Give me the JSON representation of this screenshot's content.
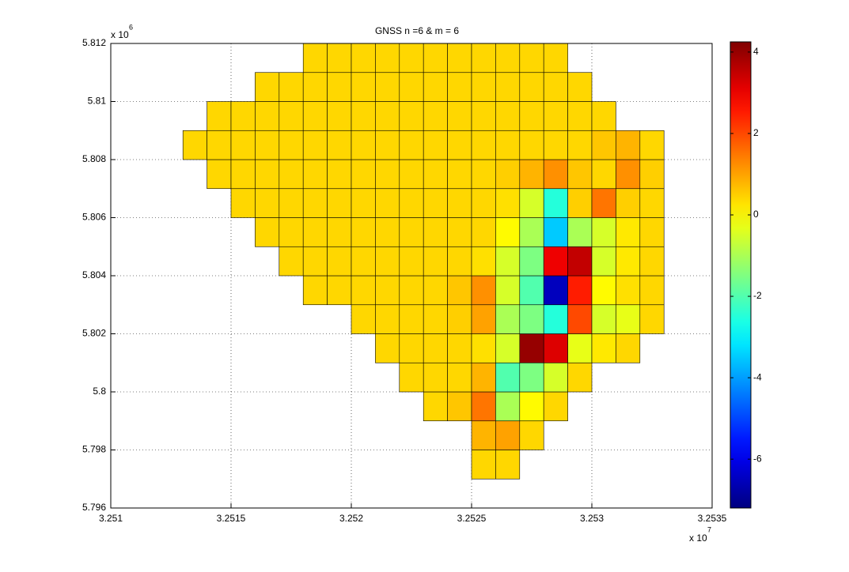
{
  "chart_data": {
    "type": "heatmap",
    "title": "GNSS n =6 & m = 6",
    "colormap": "jet",
    "grid": true,
    "cell_edge_color": "#000000",
    "x": [
      32513500,
      32514500,
      32515500,
      32516500,
      32517500,
      32518500,
      32519500,
      32520500,
      32521500,
      32522500,
      32523500,
      32524500,
      32525500,
      32526500,
      32527500,
      32528500,
      32529500,
      32530500,
      32531500,
      32532500,
      32533500
    ],
    "y": [
      5797500,
      5798500,
      5799500,
      5800500,
      5801500,
      5802500,
      5803500,
      5804500,
      5805500,
      5806500,
      5807500,
      5808500,
      5809500,
      5810500,
      5811500
    ],
    "z": [
      [
        null,
        null,
        null,
        null,
        null,
        null,
        null,
        null,
        null,
        null,
        null,
        null,
        0.4,
        0.4,
        null,
        null,
        null,
        null,
        null,
        null,
        null
      ],
      [
        null,
        null,
        null,
        null,
        null,
        null,
        null,
        null,
        null,
        null,
        null,
        null,
        0.8,
        1.0,
        0.4,
        null,
        null,
        null,
        null,
        null,
        null
      ],
      [
        null,
        null,
        null,
        null,
        null,
        null,
        null,
        null,
        null,
        null,
        0.4,
        0.6,
        1.5,
        -1,
        0,
        0.4,
        null,
        null,
        null,
        null,
        null
      ],
      [
        null,
        null,
        null,
        null,
        null,
        null,
        null,
        null,
        null,
        0.4,
        0.4,
        0.4,
        0.8,
        -2,
        -1.5,
        -0.5,
        0.4,
        null,
        null,
        null,
        null
      ],
      [
        null,
        null,
        null,
        null,
        null,
        null,
        null,
        null,
        0.4,
        0.4,
        0.4,
        0.4,
        0.3,
        -0.5,
        4,
        3.2,
        -0.3,
        0.2,
        0.4,
        null,
        null
      ],
      [
        null,
        null,
        null,
        null,
        null,
        null,
        null,
        0.4,
        0.4,
        0.4,
        0.4,
        0.5,
        1.0,
        -1,
        -1.5,
        -2.5,
        2,
        -0.5,
        -0.3,
        0.4,
        null
      ],
      [
        null,
        null,
        null,
        null,
        null,
        0.4,
        0.4,
        0.4,
        0.4,
        0.4,
        0.4,
        0.6,
        1.2,
        -0.5,
        -2,
        -6.5,
        2.5,
        0,
        0.3,
        0.4,
        null
      ],
      [
        null,
        null,
        null,
        null,
        0.4,
        0.4,
        0.4,
        0.4,
        0.4,
        0.4,
        0.4,
        0.4,
        0.3,
        -0.5,
        -1.5,
        3,
        3.5,
        -0.5,
        0.2,
        0.4,
        null
      ],
      [
        null,
        null,
        null,
        0.4,
        0.4,
        0.4,
        0.4,
        0.4,
        0.4,
        0.4,
        0.4,
        0.4,
        0.4,
        0,
        -1,
        -3.5,
        -1,
        -0.5,
        0.2,
        0.4,
        null
      ],
      [
        null,
        null,
        0.4,
        0.4,
        0.4,
        0.4,
        0.4,
        0.4,
        0.4,
        0.4,
        0.4,
        0.4,
        0.4,
        0.3,
        -0.5,
        -2.5,
        0.5,
        1.5,
        0.5,
        0.4,
        null
      ],
      [
        null,
        0.4,
        0.4,
        0.4,
        0.4,
        0.4,
        0.4,
        0.4,
        0.4,
        0.4,
        0.4,
        0.4,
        0.4,
        0.5,
        0.8,
        1.2,
        0.6,
        0.4,
        1.2,
        0.5,
        null
      ],
      [
        0.4,
        0.4,
        0.4,
        0.4,
        0.4,
        0.4,
        0.4,
        0.4,
        0.4,
        0.4,
        0.4,
        0.4,
        0.4,
        0.4,
        0.4,
        0.4,
        0.4,
        0.6,
        0.8,
        0.4,
        null
      ],
      [
        null,
        0.4,
        0.4,
        0.4,
        0.4,
        0.4,
        0.4,
        0.4,
        0.4,
        0.4,
        0.4,
        0.4,
        0.4,
        0.4,
        0.4,
        0.4,
        0.4,
        0.4,
        null,
        null,
        null
      ],
      [
        null,
        null,
        null,
        0.4,
        0.4,
        0.4,
        0.4,
        0.4,
        0.4,
        0.4,
        0.4,
        0.4,
        0.4,
        0.4,
        0.4,
        0.4,
        0.4,
        null,
        null,
        null,
        null
      ],
      [
        null,
        null,
        null,
        null,
        null,
        0.4,
        0.4,
        0.4,
        0.4,
        0.4,
        0.4,
        0.4,
        0.4,
        0.4,
        0.4,
        0.4,
        null,
        null,
        null,
        null,
        null
      ]
    ],
    "xlim": [
      32510000,
      32535000
    ],
    "xticks": [
      {
        "value": 32510000,
        "label": "3.251"
      },
      {
        "value": 32515000,
        "label": "3.2515"
      },
      {
        "value": 32520000,
        "label": "3.252"
      },
      {
        "value": 32525000,
        "label": "3.2525"
      },
      {
        "value": 32530000,
        "label": "3.253"
      },
      {
        "value": 32535000,
        "label": "3.2535"
      }
    ],
    "x_multiplier": "x 10",
    "x_power": "7",
    "ylim": [
      5796000,
      5812000
    ],
    "yticks": [
      {
        "value": 5796000,
        "label": "5.796"
      },
      {
        "value": 5798000,
        "label": "5.798"
      },
      {
        "value": 5800000,
        "label": "5.8"
      },
      {
        "value": 5802000,
        "label": "5.802"
      },
      {
        "value": 5804000,
        "label": "5.804"
      },
      {
        "value": 5806000,
        "label": "5.806"
      },
      {
        "value": 5808000,
        "label": "5.808"
      },
      {
        "value": 5810000,
        "label": "5.81"
      },
      {
        "value": 5812000,
        "label": "5.812"
      }
    ],
    "y_multiplier": "x 10",
    "y_power": "6",
    "clim": [
      -7.2,
      4.25
    ],
    "cticks": [
      -6,
      -4,
      -2,
      0,
      2,
      4
    ]
  }
}
